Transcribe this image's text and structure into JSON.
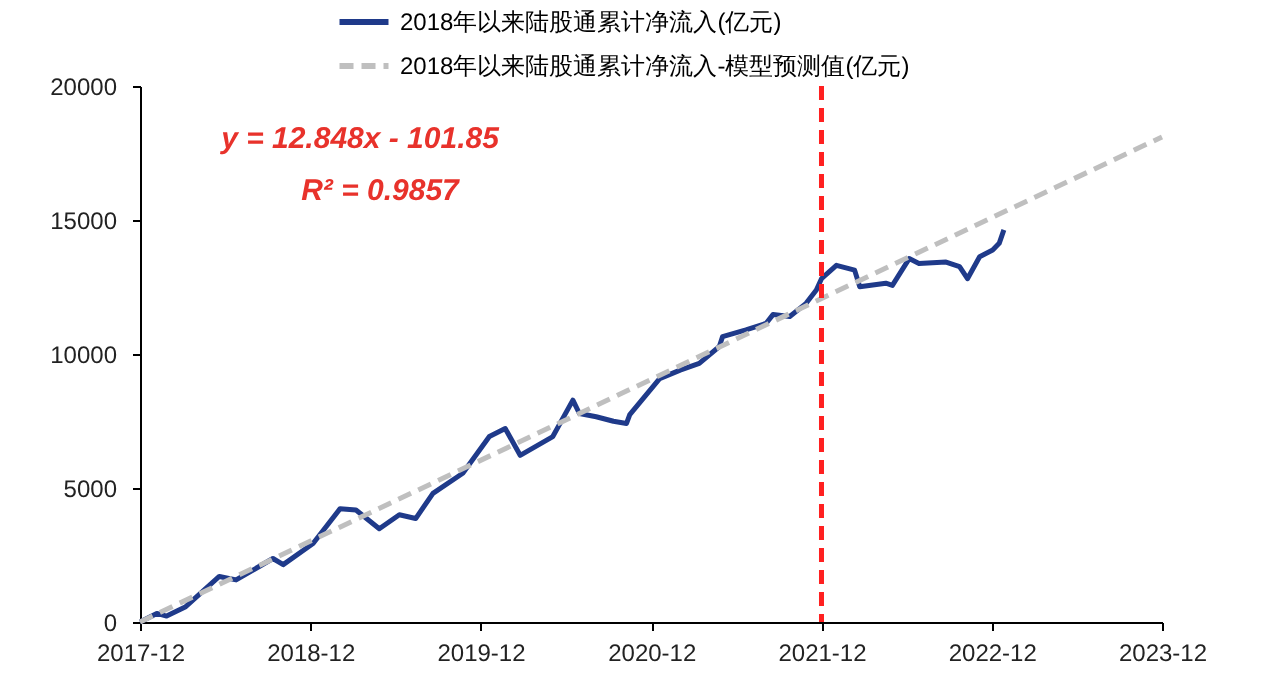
{
  "chart_data": {
    "type": "line",
    "x": [
      "2017-12-01",
      "2018-01-06",
      "2018-01-27",
      "2018-03-09",
      "2018-05-20",
      "2018-06-25",
      "2018-09-12",
      "2018-10-04",
      "2018-12-07",
      "2019-02-03",
      "2019-03-09",
      "2019-04-28",
      "2019-06-10",
      "2019-07-15",
      "2019-08-21",
      "2019-10-24",
      "2019-12-20",
      "2020-01-23",
      "2020-02-24",
      "2020-05-04",
      "2020-06-16",
      "2020-06-30",
      "2020-08-05",
      "2020-09-11",
      "2020-10-09",
      "2020-10-16",
      "2020-12-19",
      "2021-02-01",
      "2021-03-14",
      "2021-04-26",
      "2021-05-03",
      "2021-06-22",
      "2021-08-04",
      "2021-08-19",
      "2021-09-24",
      "2021-10-29",
      "2021-11-20",
      "2021-12-01",
      "2022-01-02",
      "2022-02-10",
      "2022-02-21",
      "2022-04-18",
      "2022-05-02",
      "2022-06-07",
      "2022-06-28",
      "2022-08-25",
      "2022-09-23",
      "2022-10-10",
      "2022-11-05",
      "2022-12-03",
      "2022-12-17",
      "2022-12-27"
    ],
    "series": [
      {
        "name": "2018年以来陆股通累计净流入(亿元)",
        "color": "#1f3a8a",
        "line_style": "solid",
        "values": [
          0,
          320,
          220,
          570,
          1700,
          1570,
          2370,
          2140,
          2930,
          4230,
          4180,
          3480,
          4000,
          3860,
          4800,
          5550,
          6920,
          7220,
          6220,
          6920,
          8280,
          7780,
          7660,
          7490,
          7410,
          7740,
          9080,
          9400,
          9650,
          10280,
          10650,
          10900,
          11140,
          11470,
          11400,
          11890,
          12390,
          12810,
          13310,
          13130,
          12510,
          12640,
          12560,
          13560,
          13380,
          13430,
          13260,
          12810,
          13630,
          13880,
          14130,
          14630
        ]
      },
      {
        "name": "2018年以来陆股通累计净流入-模型预测值(亿元)",
        "color": "#bfbfbf",
        "line_style": "dashed",
        "x": [
          "2017-12-01",
          "2023-12-01"
        ],
        "values": [
          0,
          18100
        ]
      }
    ],
    "xlim": [
      "2017-12",
      "2023-12"
    ],
    "xticks": [
      "2017-12",
      "2018-12",
      "2019-12",
      "2020-12",
      "2021-12",
      "2022-12",
      "2023-12"
    ],
    "ylim": [
      0,
      20000
    ],
    "yticks": [
      0,
      5000,
      10000,
      15000,
      20000
    ],
    "ref_lines": [
      {
        "axis": "x",
        "value": "2021-12",
        "color": "#ff2020",
        "line_style": "dashed"
      }
    ],
    "annotations": [
      "y = 12.848x - 101.85",
      "R² = 0.9857"
    ],
    "legend": "top",
    "grid": false
  }
}
